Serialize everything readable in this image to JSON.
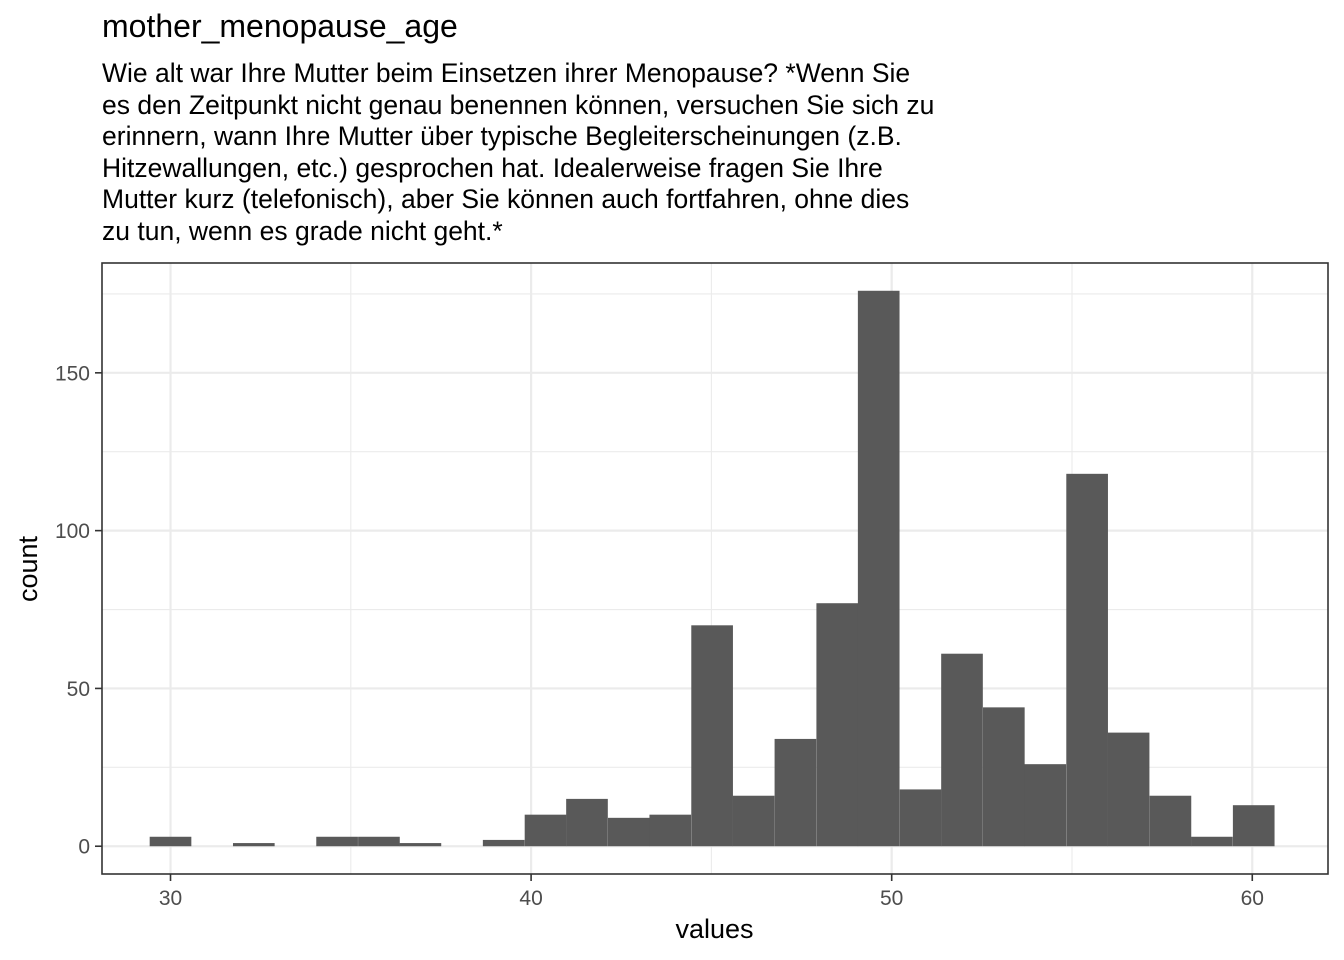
{
  "chart_data": {
    "type": "bar",
    "title": "mother_menopause_age",
    "subtitle": "Wie alt war Ihre Mutter beim Einsetzen ihrer Menopause? *Wenn Sie\nes den Zeitpunkt nicht genau benennen können, versuchen Sie sich zu\nerinnern, wann Ihre Mutter über typische Begleiterscheinungen (z.B.\nHitzewallungen, etc.) gesprochen hat. Idealerweise fragen Sie Ihre\nMutter kurz (telefonisch), aber Sie können auch fortfahren, ohne dies\nzu tun, wenn es grade nicht geht.*",
    "xlabel": "values",
    "ylabel": "count",
    "xlim": [
      28.1,
      62.1
    ],
    "ylim": [
      -8.8,
      184.8
    ],
    "x_ticks": [
      30,
      40,
      50,
      60
    ],
    "y_ticks": [
      0,
      50,
      100,
      150
    ],
    "bin_width": 1.1552,
    "bins": [
      {
        "x": 30.0,
        "count": 3
      },
      {
        "x": 31.16,
        "count": 0
      },
      {
        "x": 32.31,
        "count": 1
      },
      {
        "x": 33.47,
        "count": 0
      },
      {
        "x": 34.62,
        "count": 3
      },
      {
        "x": 35.78,
        "count": 3
      },
      {
        "x": 36.93,
        "count": 1
      },
      {
        "x": 38.09,
        "count": 0
      },
      {
        "x": 39.24,
        "count": 2
      },
      {
        "x": 40.4,
        "count": 10
      },
      {
        "x": 41.55,
        "count": 15
      },
      {
        "x": 42.71,
        "count": 9
      },
      {
        "x": 43.86,
        "count": 10
      },
      {
        "x": 45.02,
        "count": 70
      },
      {
        "x": 46.17,
        "count": 16
      },
      {
        "x": 47.33,
        "count": 34
      },
      {
        "x": 48.49,
        "count": 77
      },
      {
        "x": 49.64,
        "count": 176
      },
      {
        "x": 50.8,
        "count": 18
      },
      {
        "x": 51.95,
        "count": 61
      },
      {
        "x": 53.11,
        "count": 44
      },
      {
        "x": 54.26,
        "count": 26
      },
      {
        "x": 55.42,
        "count": 118
      },
      {
        "x": 56.57,
        "count": 36
      },
      {
        "x": 57.73,
        "count": 16
      },
      {
        "x": 58.88,
        "count": 3
      },
      {
        "x": 60.04,
        "count": 13
      }
    ],
    "grid": true,
    "legend": "none",
    "colors": {
      "bar": "#595959",
      "grid": "#ebebeb",
      "panel_border": "#333333",
      "tick_text": "#4d4d4d"
    }
  }
}
